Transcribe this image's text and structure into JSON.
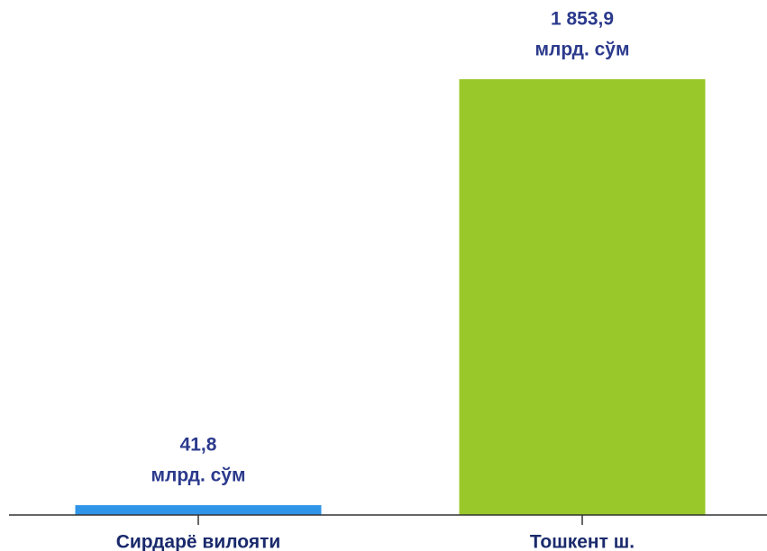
{
  "chart_data": {
    "type": "bar",
    "categories": [
      "Сирдарё вилояти",
      "Тошкент ш."
    ],
    "values": [
      41.8,
      1853.9
    ],
    "value_labels": [
      "41,8",
      "1 853,9"
    ],
    "unit": "млрд. сўм",
    "colors": [
      "#2f95e8",
      "#99c82a"
    ]
  }
}
